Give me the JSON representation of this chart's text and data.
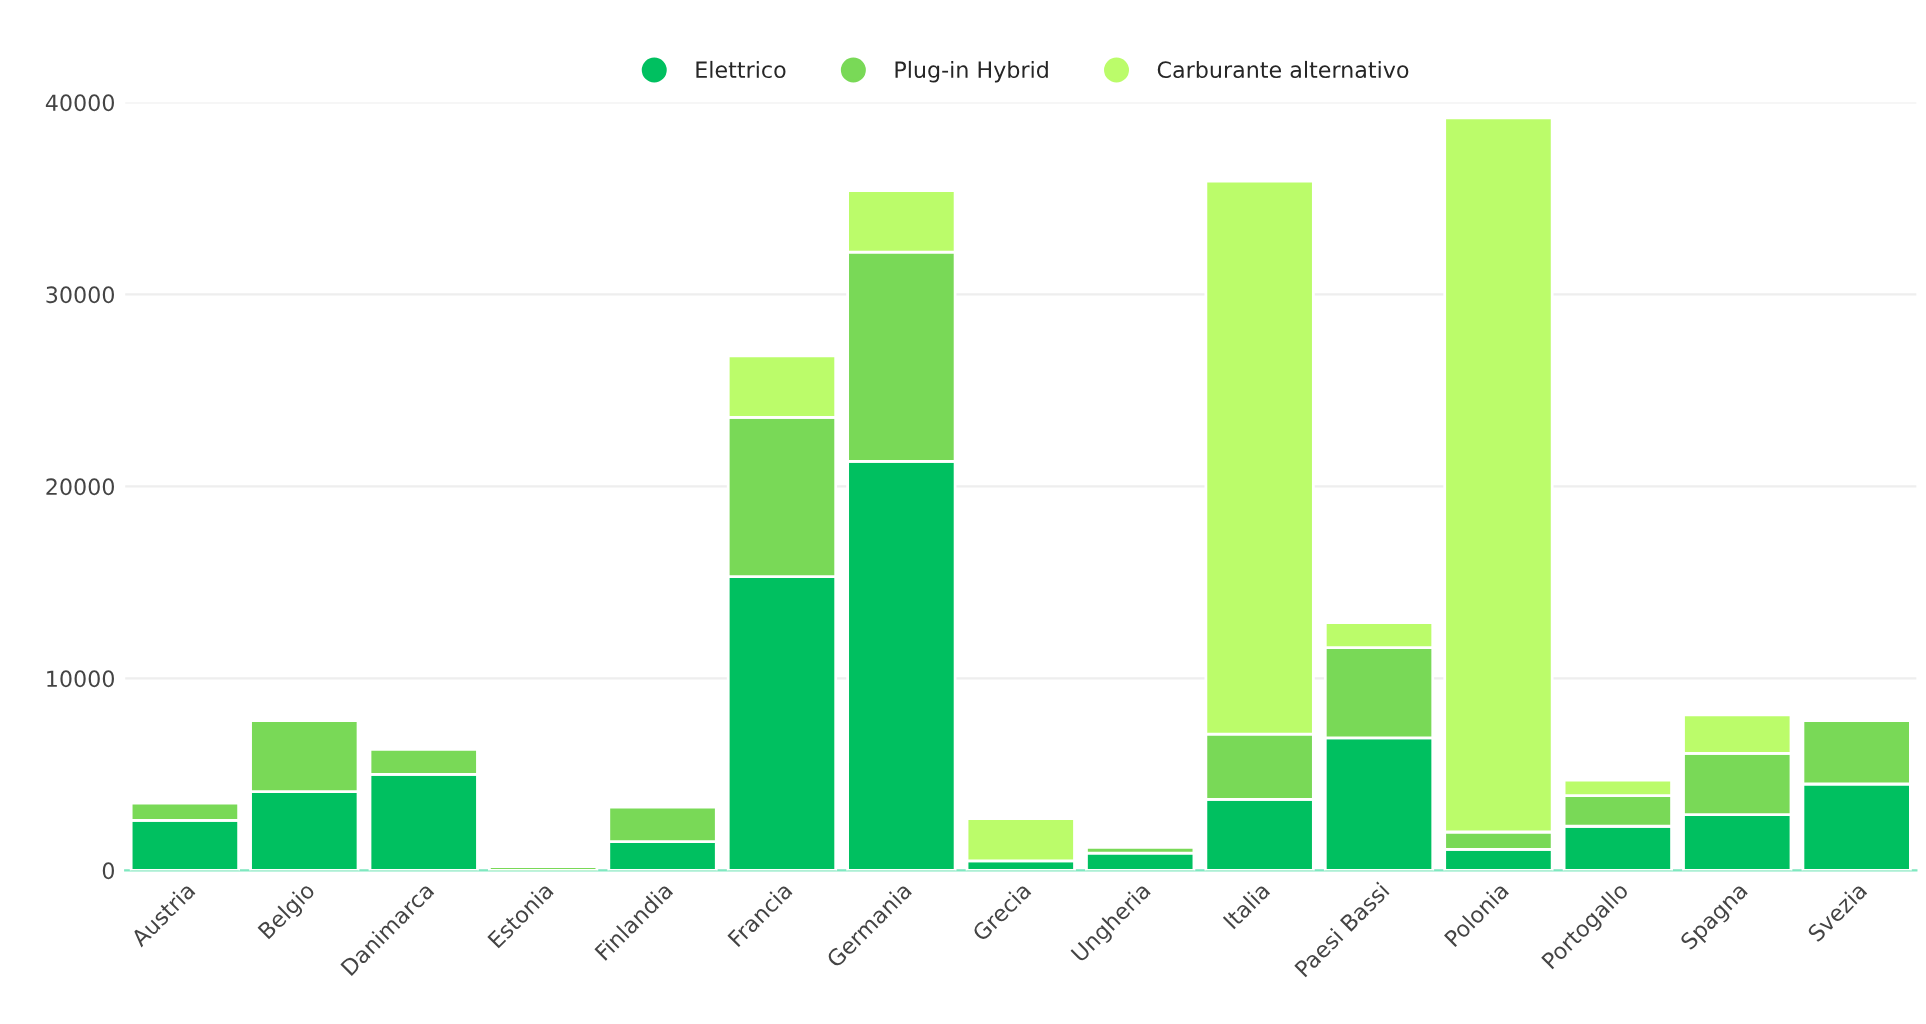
{
  "chart_data": {
    "type": "bar",
    "stacked": true,
    "categories": [
      "Austria",
      "Belgio",
      "Danimarca",
      "Estonia",
      "Finlandia",
      "Francia",
      "Germania",
      "Grecia",
      "Ungheria",
      "Italia",
      "Paesi Bassi",
      "Polonia",
      "Portogallo",
      "Spagna",
      "Svezia"
    ],
    "series": [
      {
        "name": "Elettrico",
        "color": "#00c060",
        "values": [
          2600,
          4100,
          5000,
          null,
          1500,
          15300,
          21300,
          500,
          900,
          3700,
          6900,
          1100,
          2300,
          2900,
          4500
        ]
      },
      {
        "name": "Plug-in Hybrid",
        "color": "#79d957",
        "values": [
          900,
          3700,
          1300,
          200,
          1800,
          8300,
          10900,
          null,
          300,
          3400,
          4700,
          900,
          1600,
          3200,
          3300
        ]
      },
      {
        "name": "Carburante alternativo",
        "color": "#bbfc6a",
        "values": [
          null,
          null,
          null,
          null,
          null,
          3200,
          3200,
          2200,
          null,
          28800,
          1300,
          37200,
          800,
          2000,
          null
        ]
      }
    ],
    "ylim": [
      0,
      40000
    ],
    "yticks": [
      0,
      10000,
      20000,
      30000,
      40000
    ],
    "grid": "y",
    "legend": "top"
  }
}
